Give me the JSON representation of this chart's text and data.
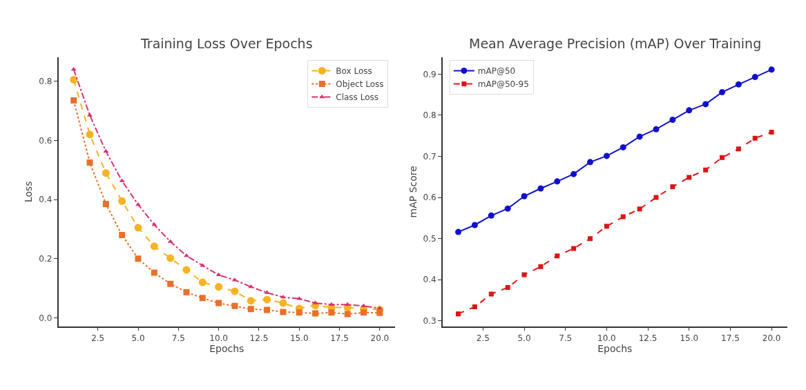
{
  "chart_data": [
    {
      "type": "line",
      "title": "Training Loss Over Epochs",
      "xlabel": "Epochs",
      "ylabel": "Loss",
      "x": [
        1,
        2,
        3,
        4,
        5,
        6,
        7,
        8,
        9,
        10,
        11,
        12,
        13,
        14,
        15,
        16,
        17,
        18,
        19,
        20
      ],
      "series": [
        {
          "name": "Box Loss",
          "color": "#f5b324",
          "marker": "circle",
          "line_style": "dashed",
          "values": [
            0.805,
            0.62,
            0.49,
            0.395,
            0.305,
            0.242,
            0.202,
            0.162,
            0.12,
            0.105,
            0.09,
            0.058,
            0.062,
            0.05,
            0.032,
            0.042,
            0.035,
            0.035,
            0.03,
            0.028
          ]
        },
        {
          "name": "Object Loss",
          "color": "#e8702a",
          "marker": "square",
          "line_style": "dotted",
          "values": [
            0.735,
            0.525,
            0.385,
            0.28,
            0.2,
            0.153,
            0.115,
            0.087,
            0.067,
            0.05,
            0.04,
            0.03,
            0.027,
            0.02,
            0.018,
            0.015,
            0.018,
            0.013,
            0.018,
            0.017
          ]
        },
        {
          "name": "Class Loss",
          "color": "#d6336c",
          "marker": "triangle",
          "line_style": "dashdot",
          "values": [
            0.84,
            0.685,
            0.563,
            0.463,
            0.383,
            0.315,
            0.258,
            0.21,
            0.177,
            0.145,
            0.128,
            0.105,
            0.085,
            0.07,
            0.065,
            0.05,
            0.045,
            0.045,
            0.04,
            0.032
          ]
        }
      ],
      "xlim": [
        0.05,
        20.95
      ],
      "xticks": [
        {
          "value": 2.5,
          "label": "2.5"
        },
        {
          "value": 5,
          "label": "5.0"
        },
        {
          "value": 7.5,
          "label": "7.5"
        },
        {
          "value": 10,
          "label": "10.0"
        },
        {
          "value": 12.5,
          "label": "12.5"
        },
        {
          "value": 15,
          "label": "15.0"
        },
        {
          "value": 17.5,
          "label": "17.5"
        },
        {
          "value": 20,
          "label": "20.0"
        }
      ],
      "ylim": [
        -0.028,
        0.881
      ],
      "yticks": [
        {
          "value": 0,
          "label": "0.0"
        },
        0.2,
        0.4,
        0.6,
        0.8
      ],
      "legend": "top right"
    },
    {
      "type": "line",
      "title": "Mean Average Precision (mAP) Over Training",
      "xlabel": "Epochs",
      "ylabel": "mAP Score",
      "x": [
        1,
        2,
        3,
        4,
        5,
        6,
        7,
        8,
        9,
        10,
        11,
        12,
        13,
        14,
        15,
        16,
        17,
        18,
        19,
        20
      ],
      "series": [
        {
          "name": "mAP@50",
          "color": "#1010cc",
          "marker": "circle",
          "line_style": "solid",
          "values": [
            0.516,
            0.533,
            0.556,
            0.573,
            0.603,
            0.622,
            0.639,
            0.657,
            0.686,
            0.701,
            0.722,
            0.748,
            0.766,
            0.789,
            0.812,
            0.827,
            0.856,
            0.875,
            0.893,
            0.911
          ]
        },
        {
          "name": "mAP@50-95",
          "color": "#dd1515",
          "marker": "square",
          "line_style": "dashed",
          "values": [
            0.317,
            0.334,
            0.365,
            0.381,
            0.412,
            0.432,
            0.458,
            0.476,
            0.5,
            0.53,
            0.553,
            0.572,
            0.6,
            0.626,
            0.649,
            0.667,
            0.697,
            0.718,
            0.744,
            0.759
          ]
        }
      ],
      "xlim": [
        0.05,
        20.95
      ],
      "xticks": [
        {
          "value": 2.5,
          "label": "2.5"
        },
        {
          "value": 5,
          "label": "5.0"
        },
        {
          "value": 7.5,
          "label": "7.5"
        },
        {
          "value": 10,
          "label": "10.0"
        },
        {
          "value": 12.5,
          "label": "12.5"
        },
        {
          "value": 15,
          "label": "15.0"
        },
        {
          "value": 17.5,
          "label": "17.5"
        },
        {
          "value": 20,
          "label": "20.0"
        }
      ],
      "ylim": [
        0.287,
        0.941
      ],
      "yticks": [
        0.3,
        0.4,
        0.5,
        0.6,
        0.7,
        0.8,
        0.9
      ],
      "legend": "top left"
    }
  ]
}
